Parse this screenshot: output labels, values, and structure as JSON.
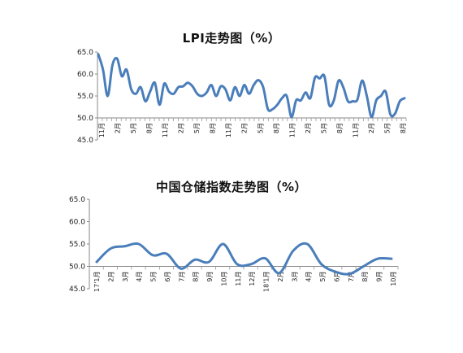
{
  "chart_data": [
    {
      "type": "line",
      "title": "LPI走势图（%）",
      "xlabel": "",
      "ylabel": "",
      "ylim": [
        45,
        65
      ],
      "yticks": [
        "65.0",
        "60.0",
        "55.0",
        "50.0",
        "45.0"
      ],
      "grid": false,
      "line_color": "#4a7ebb",
      "xtick_labels": [
        "11月",
        "2月",
        "5月",
        "8月",
        "11月",
        "2月",
        "5月",
        "8月",
        "11月",
        "2月",
        "5月",
        "8月",
        "11月",
        "2月",
        "5月",
        "8月",
        "11月",
        "2月",
        "5月",
        "8月"
      ],
      "values": [
        64.5,
        61,
        55,
        62,
        63.5,
        59.5,
        61,
        56.5,
        55.5,
        57,
        53.8,
        56,
        58,
        53,
        57.8,
        56,
        55.5,
        57,
        57.2,
        58,
        57.2,
        55.5,
        55,
        55.8,
        57.5,
        55,
        57.2,
        56.5,
        54,
        57,
        55,
        57.5,
        55.5,
        57.5,
        58.6,
        57,
        52,
        52,
        53,
        54.5,
        55,
        50.2,
        54,
        54,
        55.8,
        54.5,
        59.2,
        59,
        59.5,
        53,
        54,
        58.5,
        57,
        53.8,
        53.8,
        54.2,
        58.5,
        55,
        50.2,
        54,
        55,
        56,
        50.8,
        51,
        53.8,
        54.5
      ]
    },
    {
      "type": "line",
      "title": "中国仓储指数走势图（%）",
      "xlabel": "",
      "ylabel": "",
      "ylim": [
        45,
        65
      ],
      "yticks": [
        "65.0",
        "60.0",
        "55.0",
        "50.0",
        "45.0"
      ],
      "grid": false,
      "line_color": "#4a7ebb",
      "xtick_labels": [
        "17'1月",
        "2月",
        "3月",
        "4月",
        "5月",
        "6月",
        "7月",
        "8月",
        "9月",
        "10月",
        "11月",
        "12月",
        "18'1月",
        "2月",
        "3月",
        "4月",
        "5月",
        "6月",
        "7月",
        "8月",
        "9月",
        "10月"
      ],
      "values": [
        51,
        54,
        54.5,
        55,
        52.5,
        52.8,
        49.5,
        51.5,
        51,
        55,
        50.5,
        50.5,
        51.8,
        48.5,
        53.5,
        55,
        50.5,
        48.8,
        48.3,
        50,
        51.7,
        51.7
      ]
    }
  ]
}
